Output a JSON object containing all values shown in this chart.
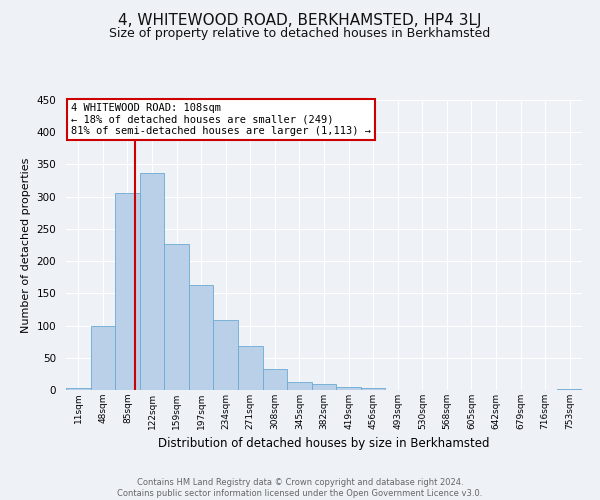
{
  "title": "4, WHITEWOOD ROAD, BERKHAMSTED, HP4 3LJ",
  "subtitle": "Size of property relative to detached houses in Berkhamsted",
  "xlabel": "Distribution of detached houses by size in Berkhamsted",
  "ylabel": "Number of detached properties",
  "footnote1": "Contains HM Land Registry data © Crown copyright and database right 2024.",
  "footnote2": "Contains public sector information licensed under the Open Government Licence v3.0.",
  "bin_labels": [
    "11sqm",
    "48sqm",
    "85sqm",
    "122sqm",
    "159sqm",
    "197sqm",
    "234sqm",
    "271sqm",
    "308sqm",
    "345sqm",
    "382sqm",
    "419sqm",
    "456sqm",
    "493sqm",
    "530sqm",
    "568sqm",
    "605sqm",
    "642sqm",
    "679sqm",
    "716sqm",
    "753sqm"
  ],
  "bar_heights": [
    3,
    99,
    305,
    336,
    227,
    163,
    109,
    69,
    33,
    13,
    10,
    5,
    3,
    0,
    0,
    0,
    0,
    0,
    0,
    0,
    2
  ],
  "bar_color": "#bad0e8",
  "bar_edge_color": "#6aaad4",
  "ylim": [
    0,
    450
  ],
  "yticks": [
    0,
    50,
    100,
    150,
    200,
    250,
    300,
    350,
    400,
    450
  ],
  "vline_x": 2.82,
  "vline_color": "#cc0000",
  "annotation_title": "4 WHITEWOOD ROAD: 108sqm",
  "annotation_line1": "← 18% of detached houses are smaller (249)",
  "annotation_line2": "81% of semi-detached houses are larger (1,113) →",
  "annotation_box_color": "#cc0000",
  "bg_color": "#eef2f7",
  "grid_color": "#ffffff",
  "title_fontsize": 11,
  "subtitle_fontsize": 9
}
